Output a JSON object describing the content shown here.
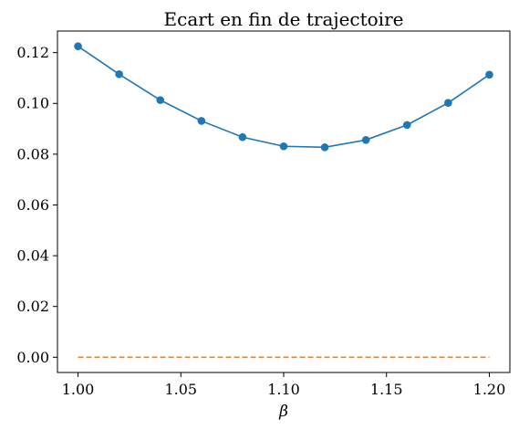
{
  "chart_data": {
    "type": "line",
    "title": "Ecart en fin de trajectoire",
    "xlabel": "β",
    "ylabel": "",
    "xlim": [
      0.99,
      1.21
    ],
    "ylim": [
      -0.006,
      0.1285
    ],
    "xticks": [
      1.0,
      1.05,
      1.1,
      1.15,
      1.2
    ],
    "xtick_labels": [
      "1.00",
      "1.05",
      "1.10",
      "1.15",
      "1.20"
    ],
    "yticks": [
      0.0,
      0.02,
      0.04,
      0.06,
      0.08,
      0.1,
      0.12
    ],
    "ytick_labels": [
      "0.00",
      "0.02",
      "0.04",
      "0.06",
      "0.08",
      "0.10",
      "0.12"
    ],
    "grid": false,
    "series": [
      {
        "color": "#1f77b4",
        "style": "solid",
        "marker": "circle",
        "x": [
          1.0,
          1.02,
          1.04,
          1.06,
          1.08,
          1.1,
          1.12,
          1.14,
          1.16,
          1.18,
          1.2
        ],
        "y": [
          0.1225,
          0.1115,
          0.1013,
          0.0931,
          0.0867,
          0.0831,
          0.0827,
          0.0856,
          0.0915,
          0.1002,
          0.1113
        ]
      },
      {
        "color": "#ff7f0e",
        "style": "dashed",
        "marker": "none",
        "x": [
          1.0,
          1.2
        ],
        "y": [
          0.0,
          0.0
        ]
      }
    ]
  }
}
